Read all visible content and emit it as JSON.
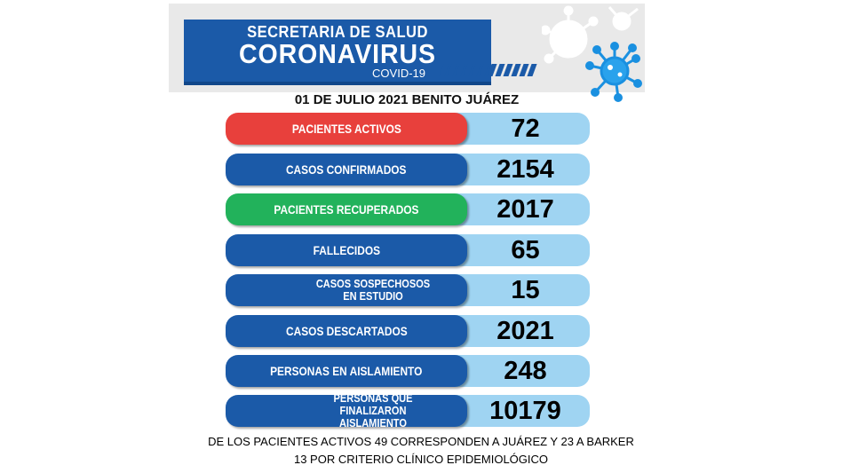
{
  "header": {
    "org": "SECRETARIA DE SALUD",
    "title": "CORONAVIRUS",
    "subtitle": "COVID-19",
    "date_line": "01 DE JULIO 2021 BENITO JUÁREZ"
  },
  "rows": [
    {
      "label": "PACIENTES ACTIVOS",
      "value": "72",
      "color": "#e8403c"
    },
    {
      "label": "CASOS CONFIRMADOS",
      "value": "2154",
      "color": "#1b5aa8"
    },
    {
      "label": "PACIENTES RECUPERADOS",
      "value": "2017",
      "color": "#22b25b"
    },
    {
      "label": "FALLECIDOS",
      "value": "65",
      "color": "#1b5aa8"
    },
    {
      "label": "CASOS SOSPECHOSOS EN ESTUDIO",
      "value": "15",
      "color": "#1b5aa8"
    },
    {
      "label": "CASOS DESCARTADOS",
      "value": "2021",
      "color": "#1b5aa8"
    },
    {
      "label": "PERSONAS EN AISLAMIENTO",
      "value": "248",
      "color": "#1b5aa8"
    },
    {
      "label": "PERSONAS QUE FINALIZARON AISLAMIENTO",
      "value": "10179",
      "color": "#1b5aa8"
    }
  ],
  "footer": {
    "line1": "DE LOS PACIENTES ACTIVOS  49 CORRESPONDEN A JUÁREZ Y 23 A BARKER",
    "line2": "13 POR CRITERIO CLÍNICO EPIDEMIOLÓGICO"
  },
  "icons": {
    "virus": "virus-icon"
  }
}
